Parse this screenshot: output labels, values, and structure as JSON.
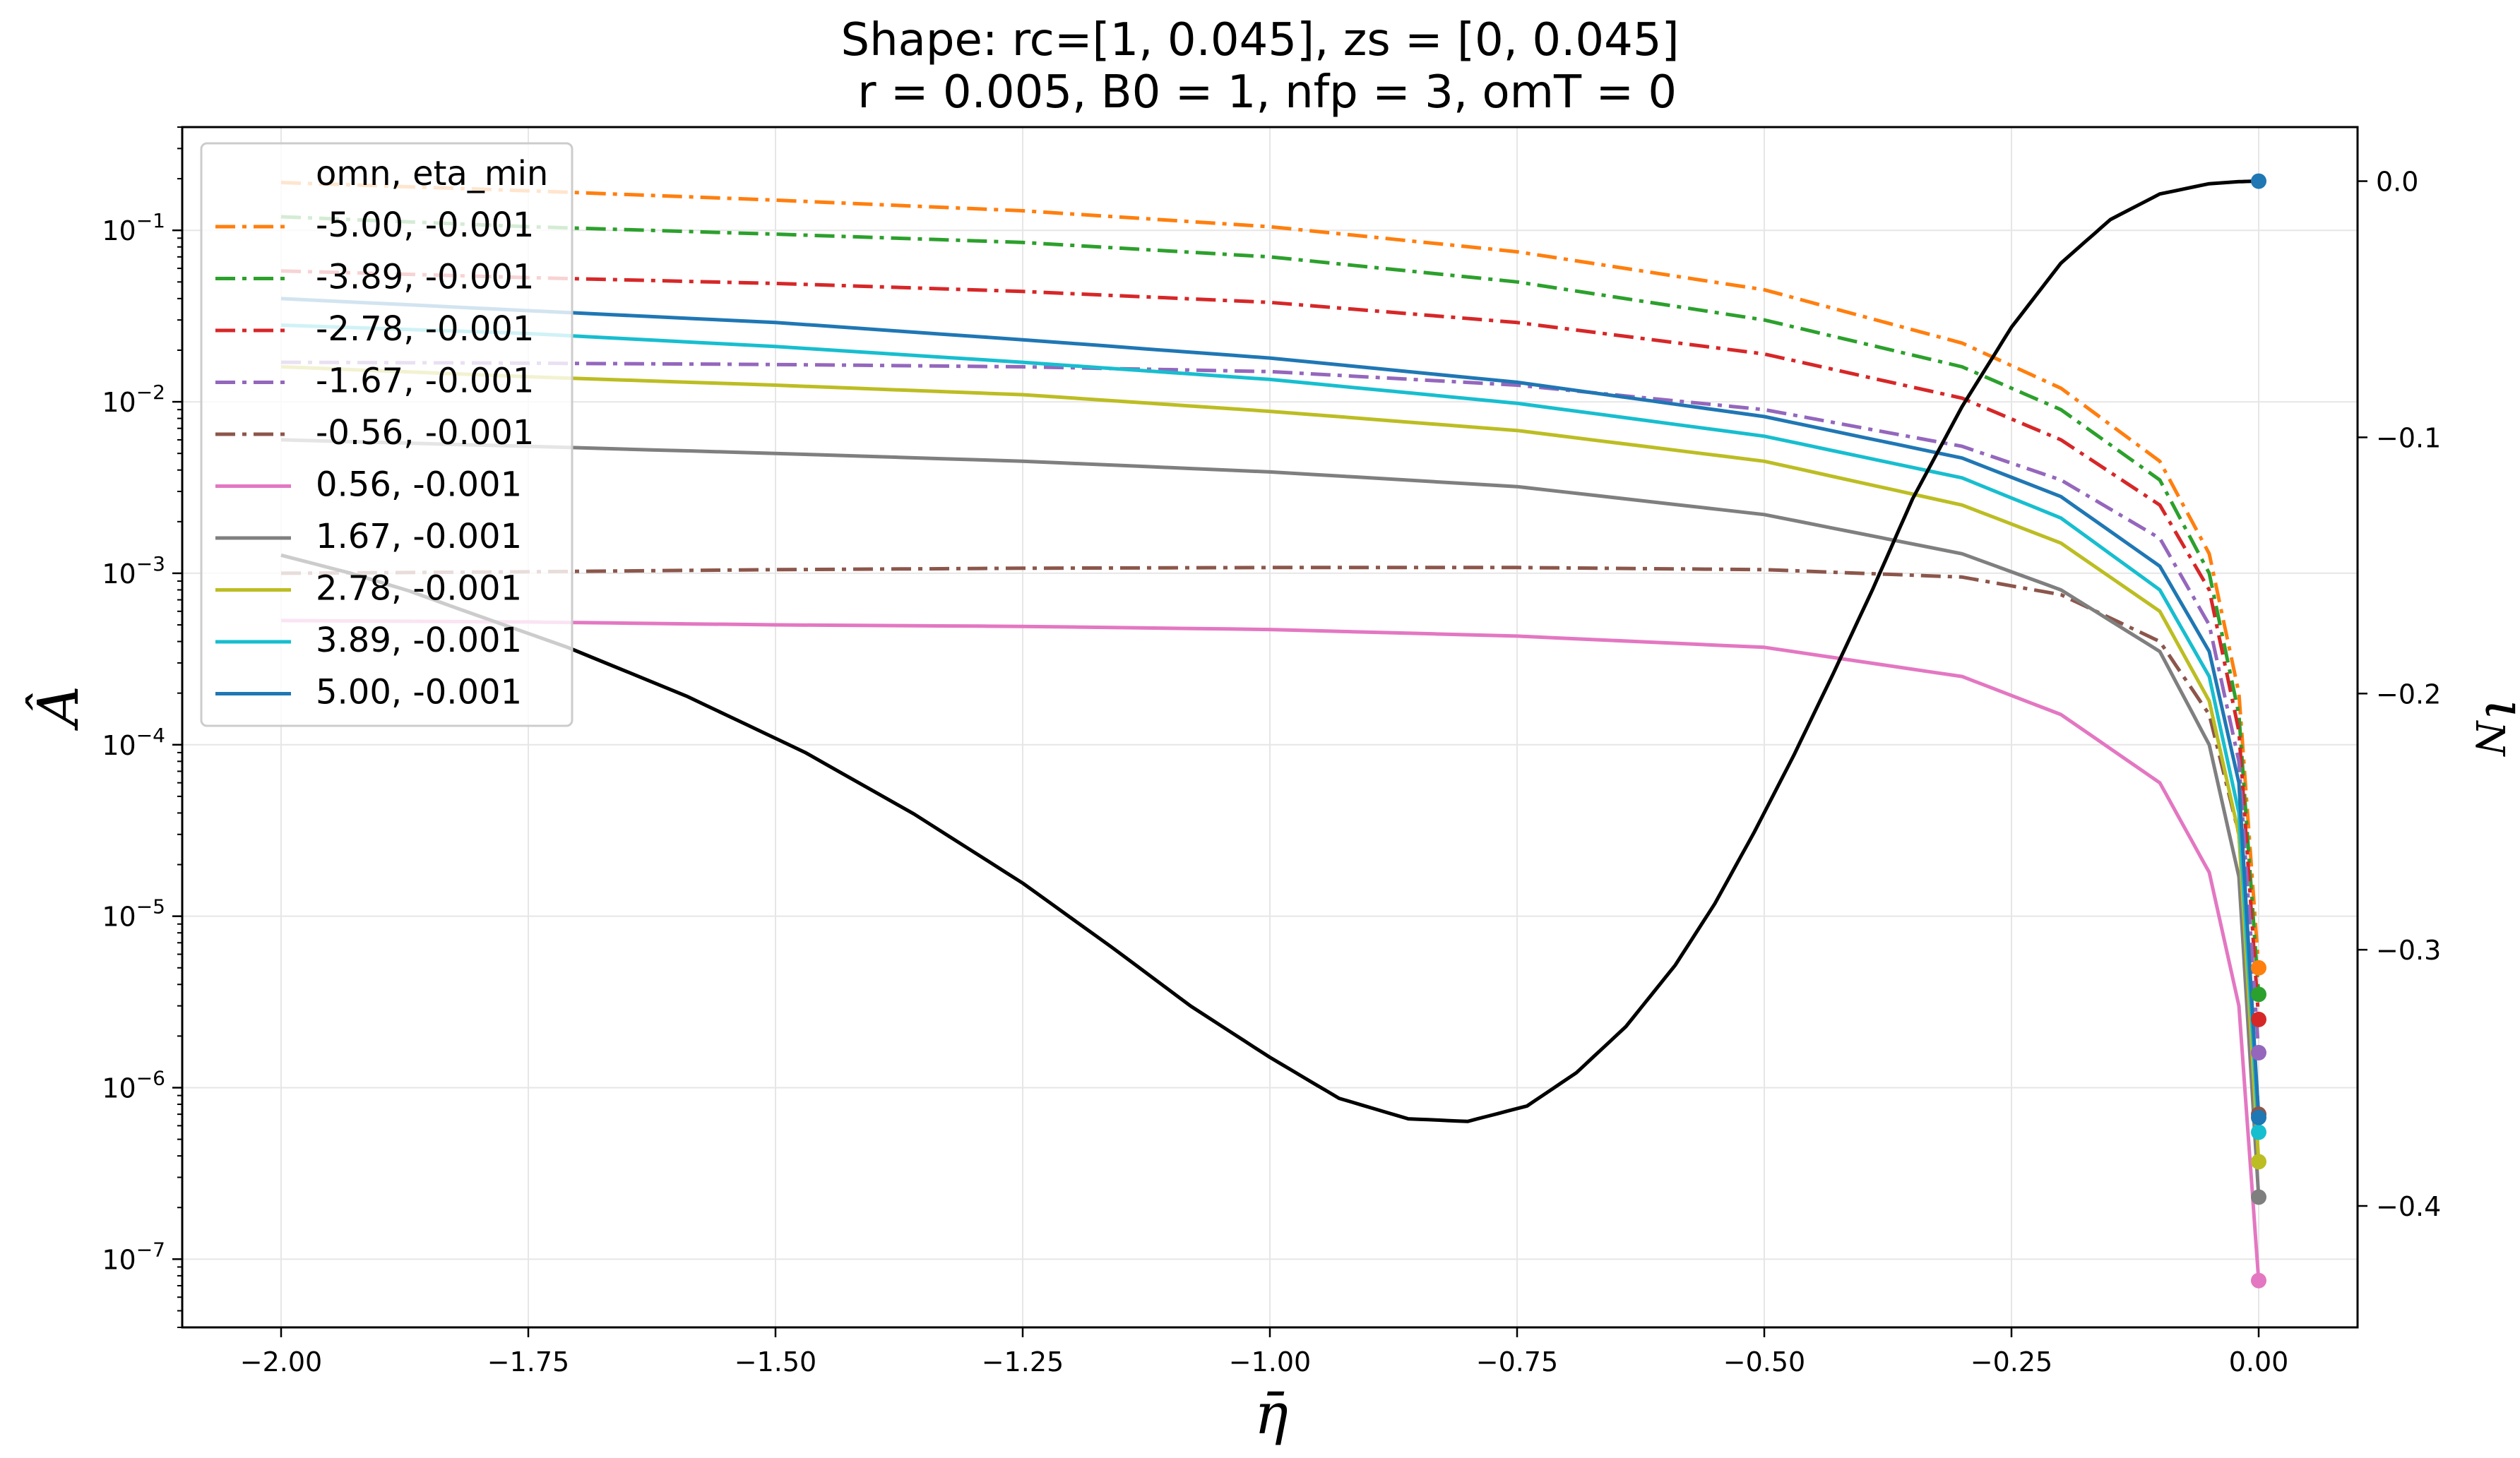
{
  "chart_data": {
    "type": "line",
    "title": "Shape: rc=[1, 0.045], zs = [0, 0.045]",
    "subtitle": " r = 0.005, B0 = 1, nfp = 3, omT = 0",
    "xlabel": "η̄",
    "ylabel": "Â",
    "y2label": "ι_N",
    "xlim": [
      -2.1,
      0.1
    ],
    "ylim": [
      4e-08,
      0.4
    ],
    "yscale": "log",
    "y2lim": [
      -0.4474,
      0.0211
    ],
    "grid": true,
    "legend_position": "top-left",
    "legend_title": "omn, eta_min",
    "x_ticks": [
      "−2.00",
      "−1.75",
      "−1.50",
      "−1.25",
      "−1.00",
      "−0.75",
      "−0.50",
      "−0.25",
      "0.00"
    ],
    "x_tick_values": [
      -2.0,
      -1.75,
      -1.5,
      -1.25,
      -1.0,
      -0.75,
      -0.5,
      -0.25,
      0.0
    ],
    "y_tick_exponents": [
      "−1",
      "−2",
      "−3",
      "−4",
      "−5",
      "−6",
      "−7"
    ],
    "y_tick_values": [
      0.1,
      0.01,
      0.001,
      0.0001,
      1e-05,
      1e-06,
      1e-07
    ],
    "y2_ticks": [
      "0.0",
      "−0.1",
      "−0.2",
      "−0.3",
      "−0.4"
    ],
    "y2_tick_values": [
      0.0,
      -0.1,
      -0.2,
      -0.3,
      -0.4
    ],
    "series": [
      {
        "name": "-5.00, -0.001",
        "color": "#ff7f0e",
        "dash": "dashdot",
        "x": [
          -2.0,
          -1.75,
          -1.5,
          -1.25,
          -1.0,
          -0.75,
          -0.5,
          -0.3,
          -0.2,
          -0.1,
          -0.05,
          -0.02,
          0.0
        ],
        "y": [
          0.19,
          0.17,
          0.15,
          0.13,
          0.105,
          0.075,
          0.045,
          0.022,
          0.012,
          0.0045,
          0.0013,
          0.0002,
          5e-06
        ]
      },
      {
        "name": "-3.89, -0.001",
        "color": "#2ca02c",
        "dash": "dashdot",
        "x": [
          -2.0,
          -1.75,
          -1.5,
          -1.25,
          -1.0,
          -0.75,
          -0.5,
          -0.3,
          -0.2,
          -0.1,
          -0.05,
          -0.02,
          0.0
        ],
        "y": [
          0.12,
          0.105,
          0.095,
          0.085,
          0.07,
          0.05,
          0.03,
          0.016,
          0.009,
          0.0035,
          0.001,
          0.00015,
          3.5e-06
        ]
      },
      {
        "name": "-2.78, -0.001",
        "color": "#d62728",
        "dash": "dashdot",
        "x": [
          -2.0,
          -1.75,
          -1.5,
          -1.25,
          -1.0,
          -0.75,
          -0.5,
          -0.3,
          -0.2,
          -0.1,
          -0.05,
          -0.02,
          0.0
        ],
        "y": [
          0.058,
          0.053,
          0.049,
          0.044,
          0.038,
          0.029,
          0.019,
          0.0105,
          0.006,
          0.0025,
          0.0008,
          0.00012,
          2.5e-06
        ]
      },
      {
        "name": "-1.67, -0.001",
        "color": "#9467bd",
        "dash": "dashdot",
        "x": [
          -2.0,
          -1.75,
          -1.5,
          -1.25,
          -1.0,
          -0.75,
          -0.5,
          -0.3,
          -0.2,
          -0.1,
          -0.05,
          -0.02,
          0.0
        ],
        "y": [
          0.017,
          0.0168,
          0.0165,
          0.016,
          0.015,
          0.0125,
          0.009,
          0.0055,
          0.0035,
          0.0016,
          0.0005,
          8e-05,
          1.6e-06
        ]
      },
      {
        "name": "-0.56, -0.001",
        "color": "#8c564b",
        "dash": "dashdot",
        "x": [
          -2.0,
          -1.75,
          -1.5,
          -1.25,
          -1.0,
          -0.75,
          -0.5,
          -0.3,
          -0.2,
          -0.1,
          -0.05,
          -0.02,
          0.0
        ],
        "y": [
          0.001,
          0.00102,
          0.00105,
          0.00107,
          0.00108,
          0.00108,
          0.00105,
          0.00095,
          0.00075,
          0.0004,
          0.00015,
          3e-05,
          7e-07
        ]
      },
      {
        "name": "0.56, -0.001",
        "color": "#e377c2",
        "dash": "solid",
        "x": [
          -2.0,
          -1.75,
          -1.5,
          -1.25,
          -1.0,
          -0.75,
          -0.5,
          -0.3,
          -0.2,
          -0.1,
          -0.05,
          -0.02,
          0.0
        ],
        "y": [
          0.00053,
          0.00052,
          0.0005,
          0.00049,
          0.00047,
          0.00043,
          0.00037,
          0.00025,
          0.00015,
          6e-05,
          1.8e-05,
          3e-06,
          7.5e-08
        ]
      },
      {
        "name": "1.67, -0.001",
        "color": "#7f7f7f",
        "dash": "solid",
        "x": [
          -2.0,
          -1.75,
          -1.5,
          -1.25,
          -1.0,
          -0.75,
          -0.5,
          -0.3,
          -0.2,
          -0.1,
          -0.05,
          -0.02,
          0.0
        ],
        "y": [
          0.006,
          0.0055,
          0.005,
          0.0045,
          0.0039,
          0.0032,
          0.0022,
          0.0013,
          0.0008,
          0.00035,
          0.0001,
          1.7e-05,
          2.3e-07
        ]
      },
      {
        "name": "2.78, -0.001",
        "color": "#bcbd22",
        "dash": "solid",
        "x": [
          -2.0,
          -1.75,
          -1.5,
          -1.25,
          -1.0,
          -0.75,
          -0.5,
          -0.3,
          -0.2,
          -0.1,
          -0.05,
          -0.02,
          0.0
        ],
        "y": [
          0.016,
          0.014,
          0.0125,
          0.011,
          0.0088,
          0.0068,
          0.0045,
          0.0025,
          0.0015,
          0.0006,
          0.00018,
          3e-05,
          3.7e-07
        ]
      },
      {
        "name": "3.89, -0.001",
        "color": "#17becf",
        "dash": "solid",
        "x": [
          -2.0,
          -1.75,
          -1.5,
          -1.25,
          -1.0,
          -0.75,
          -0.5,
          -0.3,
          -0.2,
          -0.1,
          -0.05,
          -0.02,
          0.0
        ],
        "y": [
          0.028,
          0.025,
          0.021,
          0.017,
          0.0135,
          0.0098,
          0.0063,
          0.0036,
          0.0021,
          0.0008,
          0.00025,
          4e-05,
          5.5e-07
        ]
      },
      {
        "name": "5.00, -0.001",
        "color": "#1f77b4",
        "dash": "solid",
        "x": [
          -2.0,
          -1.75,
          -1.5,
          -1.25,
          -1.0,
          -0.75,
          -0.5,
          -0.3,
          -0.2,
          -0.1,
          -0.05,
          -0.02,
          0.0
        ],
        "y": [
          0.04,
          0.034,
          0.029,
          0.023,
          0.018,
          0.013,
          0.0082,
          0.0047,
          0.0028,
          0.0011,
          0.00035,
          6e-05,
          6.7e-07
        ]
      }
    ],
    "iota_series": {
      "color": "#000000",
      "x": [
        -2.0,
        -1.93,
        -1.87,
        -1.82,
        -1.71,
        -1.59,
        -1.47,
        -1.36,
        -1.25,
        -1.16,
        -1.08,
        -1.0,
        -0.93,
        -0.86,
        -0.8,
        -0.74,
        -0.69,
        -0.64,
        -0.59,
        -0.55,
        -0.51,
        -0.47,
        -0.43,
        -0.39,
        -0.35,
        -0.3,
        -0.25,
        -0.2,
        -0.15,
        -0.1,
        -0.05,
        -0.02,
        0.0
      ],
      "y": [
        -0.146,
        -0.153,
        -0.16,
        -0.167,
        -0.182,
        -0.201,
        -0.223,
        -0.247,
        -0.274,
        -0.299,
        -0.322,
        -0.342,
        -0.358,
        -0.366,
        -0.367,
        -0.361,
        -0.348,
        -0.33,
        -0.306,
        -0.282,
        -0.254,
        -0.224,
        -0.192,
        -0.159,
        -0.124,
        -0.088,
        -0.057,
        -0.032,
        -0.015,
        -0.005,
        -0.001,
        -0.0002,
        0.0
      ]
    },
    "endpoint_markers": true
  }
}
